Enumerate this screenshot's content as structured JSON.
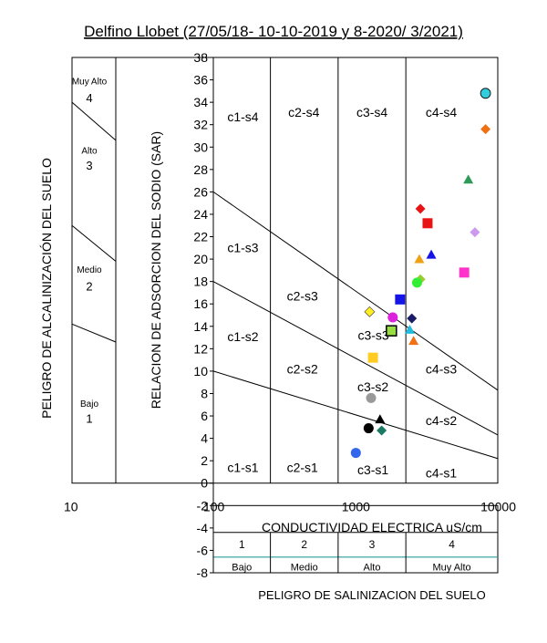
{
  "chart_data": {
    "type": "scatter",
    "title": "Delfino Llobet (27/05/18- 10-10-2019 y 8-2020/ 3/2021)",
    "xlabel": "CONDUCTIVIDAD  ELECTRICA uS/cm",
    "ylabel": "RELACION DE ADSORCION DEL SODIO (SAR)",
    "outer_ylabel": "PELIGRO DE ALCALINIZACIÓN DEL SUELO",
    "bottom_label": "PELIGRO DE SALINIZACION DEL SUELO",
    "x_scale": "log",
    "xlim": [
      10,
      10000
    ],
    "ylim": [
      -8,
      38
    ],
    "x_ticks": [
      "10",
      "100",
      "1000",
      "10000"
    ],
    "y_ticks": [
      "-8",
      "-6",
      "-4",
      "-2",
      "0",
      "2",
      "4",
      "6",
      "8",
      "10",
      "12",
      "14",
      "16",
      "18",
      "20",
      "22",
      "24",
      "26",
      "28",
      "30",
      "32",
      "34",
      "36",
      "38"
    ],
    "alkalinity_classes": [
      {
        "line1": "Muy Alto",
        "line2": "4"
      },
      {
        "line1": "Alto",
        "line2": "3"
      },
      {
        "line1": "Medio",
        "line2": "2"
      },
      {
        "line1": "Bajo",
        "line2": "1"
      }
    ],
    "salinity_classes": [
      {
        "number": "1",
        "name": "Bajo"
      },
      {
        "number": "2",
        "name": "Medio"
      },
      {
        "number": "3",
        "name": "Alto"
      },
      {
        "number": "4",
        "name": "Muy Alto"
      }
    ],
    "salinity_boundaries": [
      250,
      750,
      2250
    ],
    "sar_lines": [
      {
        "y_at_100": 10,
        "y_at_10000": 2.2
      },
      {
        "y_at_100": 18,
        "y_at_10000": 4.3
      },
      {
        "y_at_100": 26,
        "y_at_10000": 8.3
      }
    ],
    "zone_labels": [
      {
        "text": "c1-s4",
        "x": 160,
        "y": 32.3
      },
      {
        "text": "c2-s4",
        "x": 430,
        "y": 32.7
      },
      {
        "text": "c3-s4",
        "x": 1300,
        "y": 32.7
      },
      {
        "text": "c4-s4",
        "x": 4000,
        "y": 32.7
      },
      {
        "text": "c1-s3",
        "x": 160,
        "y": 20.6
      },
      {
        "text": "c2-s3",
        "x": 420,
        "y": 16.3
      },
      {
        "text": "c3-s3",
        "x": 1330,
        "y": 12.8
      },
      {
        "text": "c1-s2",
        "x": 160,
        "y": 12.7
      },
      {
        "text": "c2-s2",
        "x": 420,
        "y": 9.8
      },
      {
        "text": "c3-s2",
        "x": 1320,
        "y": 8.2
      },
      {
        "text": "c4-s3",
        "x": 4000,
        "y": 9.8
      },
      {
        "text": "c4-s2",
        "x": 4000,
        "y": 5.2
      },
      {
        "text": "c1-s1",
        "x": 160,
        "y": 1.0
      },
      {
        "text": "c2-s1",
        "x": 420,
        "y": 1.0
      },
      {
        "text": "c3-s1",
        "x": 1320,
        "y": 0.8
      },
      {
        "text": "c4-s1",
        "x": 4000,
        "y": 0.5
      }
    ],
    "points": [
      {
        "x": 8200,
        "y": 34.8,
        "marker": "circle",
        "color": "#33ccdd"
      },
      {
        "x": 8200,
        "y": 31.6,
        "marker": "diamond",
        "color": "#f07014"
      },
      {
        "x": 6200,
        "y": 27.1,
        "marker": "triangle",
        "color": "#2e9a58"
      },
      {
        "x": 2850,
        "y": 24.5,
        "marker": "diamond",
        "color": "#e81414"
      },
      {
        "x": 3200,
        "y": 23.2,
        "marker": "square",
        "color": "#e81414"
      },
      {
        "x": 6900,
        "y": 22.4,
        "marker": "diamond",
        "color": "#cc99ee"
      },
      {
        "x": 3400,
        "y": 20.4,
        "marker": "triangle",
        "color": "#1414e8"
      },
      {
        "x": 2800,
        "y": 20.0,
        "marker": "triangle",
        "color": "#f0a014"
      },
      {
        "x": 5800,
        "y": 18.8,
        "marker": "square",
        "color": "#ff33cc"
      },
      {
        "x": 2850,
        "y": 18.2,
        "marker": "diamond",
        "color": "#99cc33"
      },
      {
        "x": 2700,
        "y": 17.9,
        "marker": "circle",
        "color": "#33ee33"
      },
      {
        "x": 2050,
        "y": 16.4,
        "marker": "square",
        "color": "#1414e8"
      },
      {
        "x": 1250,
        "y": 15.3,
        "marker": "diamond",
        "color": "#ffee22"
      },
      {
        "x": 1820,
        "y": 14.8,
        "marker": "circle",
        "color": "#dd22dd"
      },
      {
        "x": 2480,
        "y": 14.7,
        "marker": "diamond",
        "color": "#1a1a66"
      },
      {
        "x": 2400,
        "y": 13.7,
        "marker": "triangle",
        "color": "#22bbdd"
      },
      {
        "x": 1780,
        "y": 13.6,
        "marker": "square",
        "color": "#99dd44"
      },
      {
        "x": 2550,
        "y": 12.7,
        "marker": "triangle",
        "color": "#f07014"
      },
      {
        "x": 1320,
        "y": 11.2,
        "marker": "square",
        "color": "#ffcc22"
      },
      {
        "x": 1280,
        "y": 7.6,
        "marker": "circle",
        "color": "#999999"
      },
      {
        "x": 1480,
        "y": 5.7,
        "marker": "triangle",
        "color": "#000000"
      },
      {
        "x": 1230,
        "y": 4.9,
        "marker": "circle",
        "color": "#000000"
      },
      {
        "x": 1520,
        "y": 4.7,
        "marker": "diamond",
        "color": "#1a7a66"
      },
      {
        "x": 1000,
        "y": 2.7,
        "marker": "circle",
        "color": "#3366ee"
      }
    ]
  }
}
